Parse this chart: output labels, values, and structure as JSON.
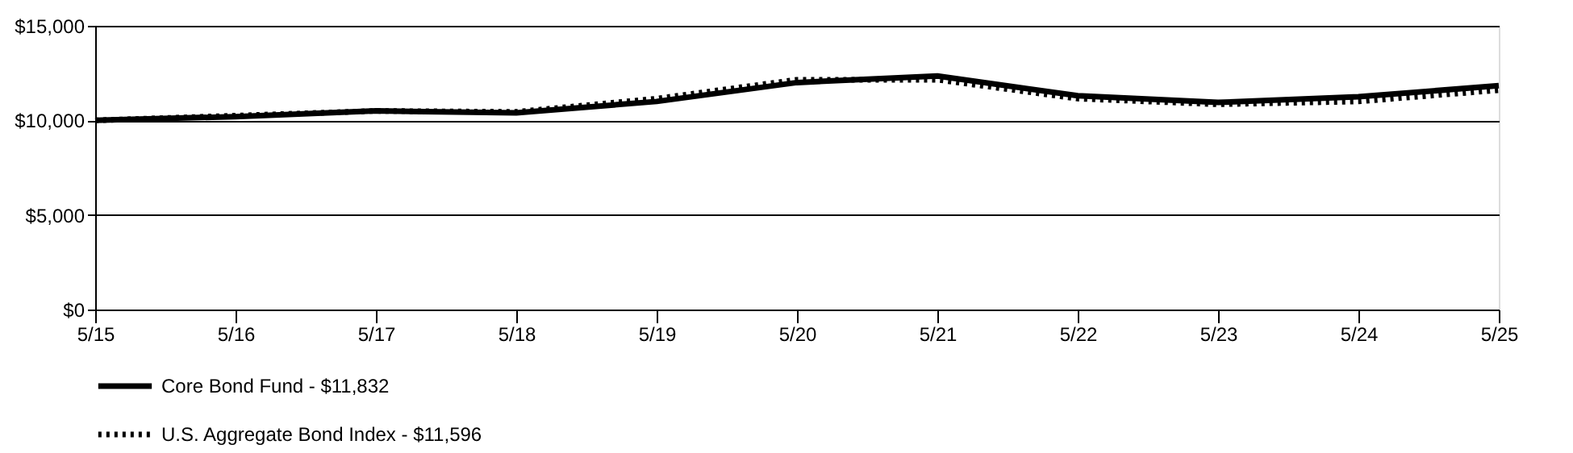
{
  "chart_data": {
    "type": "line",
    "categories": [
      "5/15",
      "5/16",
      "5/17",
      "5/18",
      "5/19",
      "5/20",
      "5/21",
      "5/22",
      "5/23",
      "5/24",
      "5/25"
    ],
    "series": [
      {
        "name": "Core Bond Fund - $11,832",
        "color": "#000000",
        "line_style": "solid",
        "values": [
          10000,
          10200,
          10500,
          10400,
          11000,
          12000,
          12350,
          11300,
          10950,
          11250,
          11832
        ]
      },
      {
        "name": "U.S. Aggregate Bond Index - $11,596",
        "color": "#000000",
        "line_style": "dotted",
        "values": [
          10000,
          10250,
          10500,
          10450,
          11150,
          12150,
          12150,
          11150,
          10850,
          11000,
          11596
        ]
      }
    ],
    "ylim": [
      0,
      15000
    ],
    "yticks": [
      {
        "value": 0,
        "label": "$0"
      },
      {
        "value": 5000,
        "label": "$5,000"
      },
      {
        "value": 10000,
        "label": "$10,000"
      },
      {
        "value": 15000,
        "label": "$15,000"
      }
    ],
    "grid": "y",
    "legend": "bottom left",
    "marker": "none"
  }
}
